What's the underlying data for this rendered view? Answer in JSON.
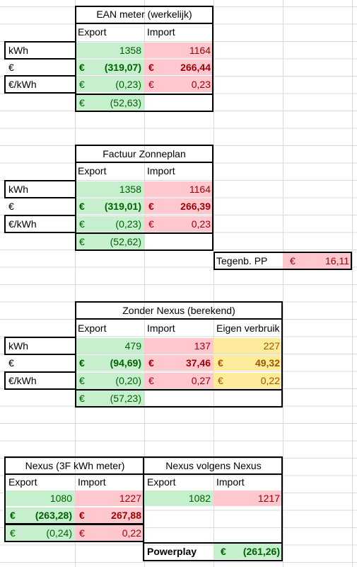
{
  "ean": {
    "title": "EAN meter (werkelijk)",
    "col_export": "Export",
    "col_import": "Import",
    "row_kwh": "kWh",
    "row_eur": "€",
    "row_eurkwh": "€/kWh",
    "export_kwh": "1358",
    "import_kwh": "1164",
    "export_eur": "(319,07)",
    "import_eur": "266,44",
    "export_eurkwh": "(0,23)",
    "import_eurkwh": "0,23",
    "total": "(52,63)"
  },
  "zonneplan": {
    "title": "Factuur Zonneplan",
    "col_export": "Export",
    "col_import": "Import",
    "row_kwh": "kWh",
    "row_eur": "€",
    "row_eurkwh": "€/kWh",
    "export_kwh": "1358",
    "import_kwh": "1164",
    "export_eur": "(319,01)",
    "import_eur": "266,39",
    "export_eurkwh": "(0,23)",
    "import_eurkwh": "0,23",
    "total": "(52,62)",
    "tegenb_label": "Tegenb. PP",
    "tegenb_value": "16,11"
  },
  "zonder_nexus": {
    "title": "Zonder Nexus (berekend)",
    "col_export": "Export",
    "col_import": "Import",
    "col_eigen": "Eigen verbruik",
    "row_kwh": "kWh",
    "row_eur": "€",
    "row_eurkwh": "€/kWh",
    "export_kwh": "479",
    "import_kwh": "137",
    "eigen_kwh": "227",
    "export_eur": "(94,69)",
    "import_eur": "37,46",
    "eigen_eur": "49,32",
    "export_eurkwh": "(0,20)",
    "import_eurkwh": "0,27",
    "eigen_eurkwh": "0,22",
    "total": "(57,23)"
  },
  "nexus3f": {
    "title": "Nexus (3F kWh meter)",
    "col_export": "Export",
    "col_import": "Import",
    "export_kwh": "1080",
    "import_kwh": "1227",
    "export_eur": "(263,28)",
    "import_eur": "267,88",
    "export_eurkwh": "(0,24)",
    "import_eurkwh": "0,22"
  },
  "nexus_volgens": {
    "title": "Nexus volgens Nexus",
    "col_export": "Export",
    "col_import": "Import",
    "export_kwh": "1082",
    "import_kwh": "1217",
    "powerplay_label": "Powerplay",
    "powerplay_value": "(261,26)"
  },
  "currency_symbol": "€",
  "colors": {
    "positive_fill": "#c6efce",
    "positive_text": "#006100",
    "negative_fill": "#ffc7ce",
    "negative_text": "#9c0006",
    "neutral_fill": "#ffeb9c",
    "neutral_text": "#9c5700",
    "gridline": "#d9d9d9"
  }
}
